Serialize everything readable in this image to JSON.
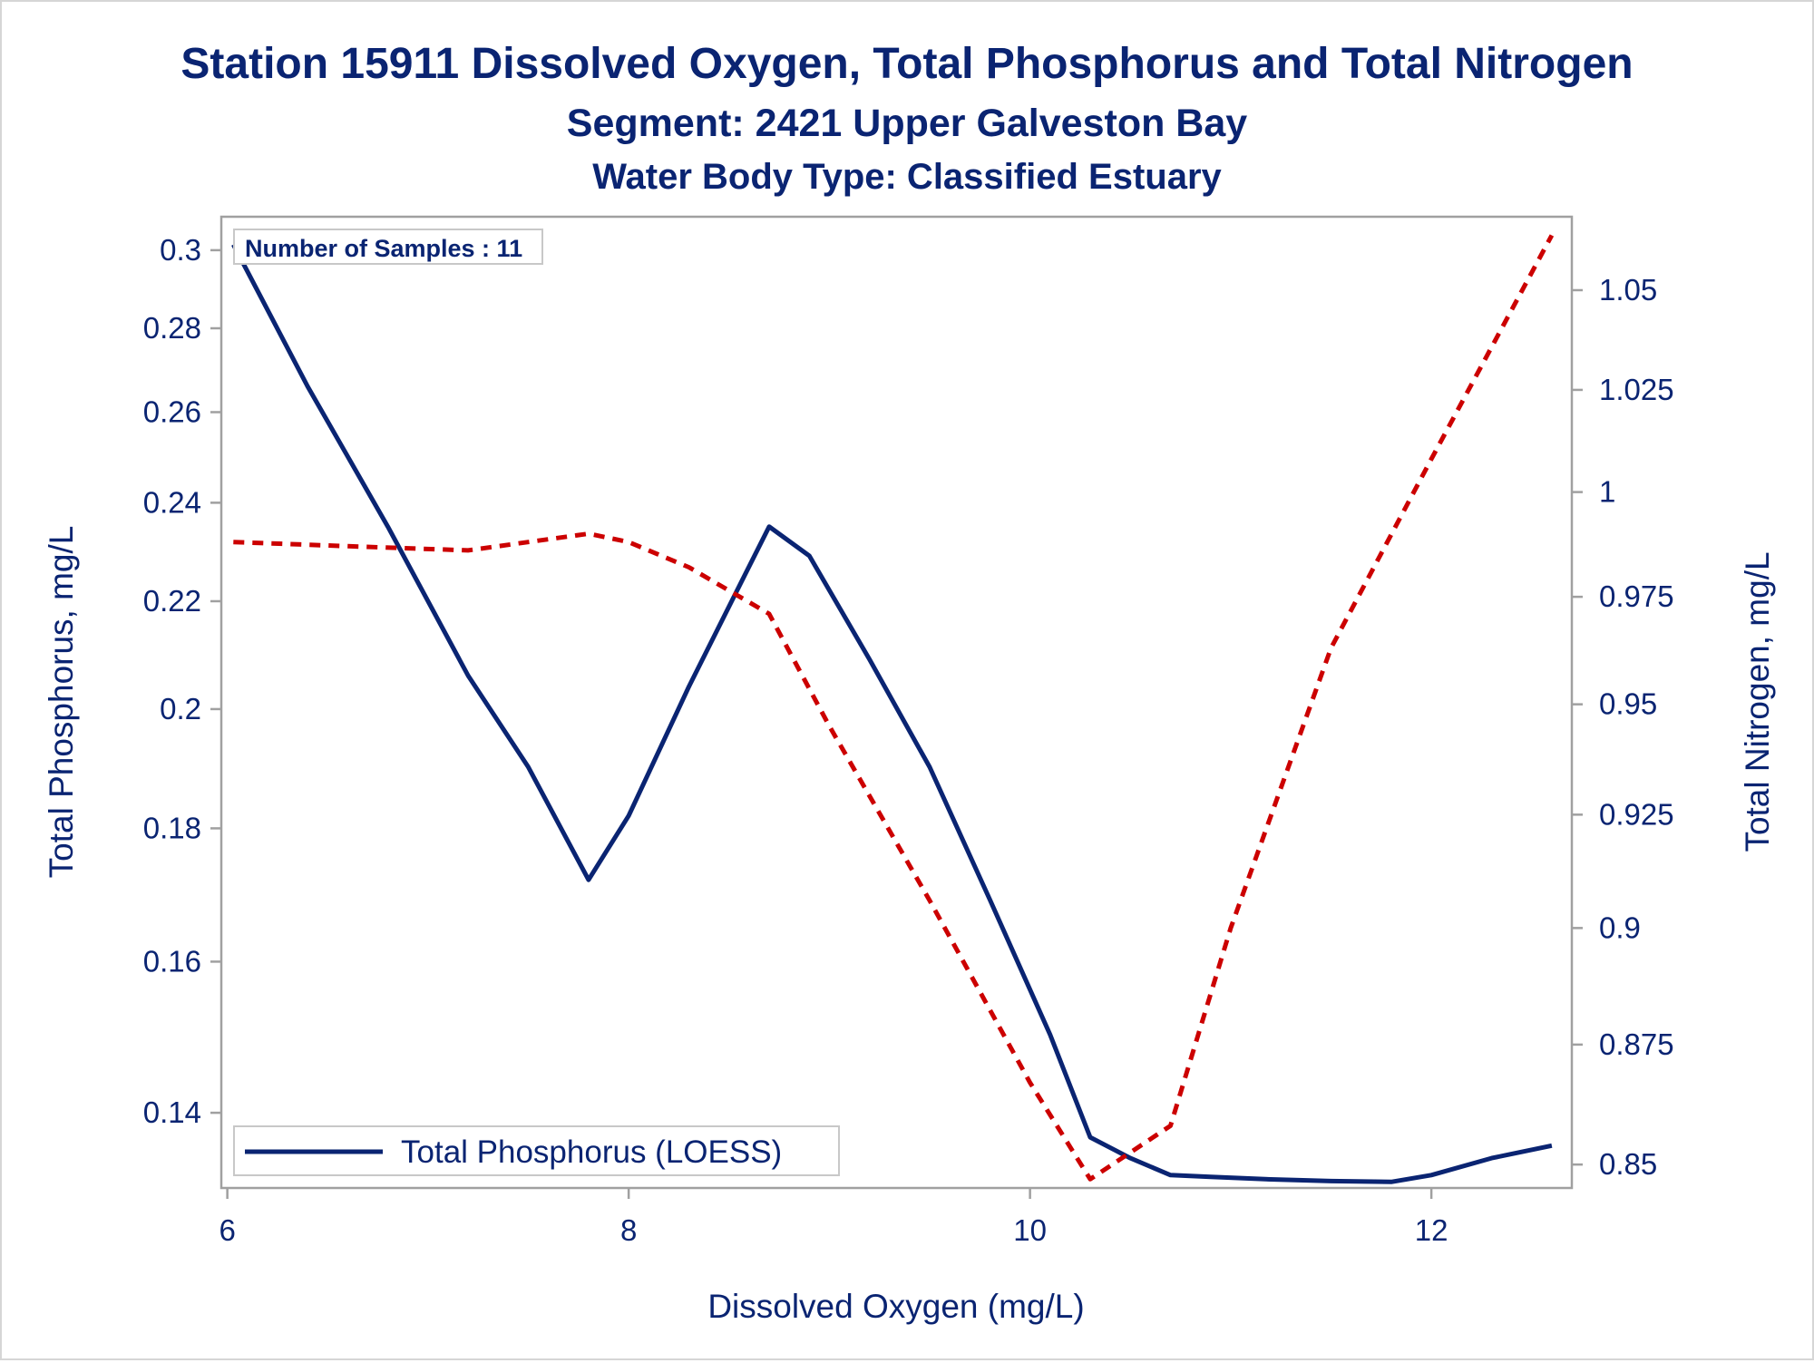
{
  "chart_data": {
    "type": "line",
    "title": "Station 15911  Dissolved Oxygen, Total Phosphorus and Total Nitrogen",
    "subtitle": "Segment: 2421  Upper Galveston Bay",
    "subtitle2": "Water Body Type: Classified Estuary",
    "xlabel": "Dissolved Oxygen (mg/L)",
    "ylabel": "Total Phosphorus, mg/L",
    "y2label": "Total Nitrogen, mg/L",
    "xlim": [
      5.97,
      12.7
    ],
    "ylim": [
      0.131,
      0.309
    ],
    "y2lim": [
      0.8452,
      1.0688
    ],
    "y_scale": "log",
    "y2_scale": "log",
    "xticks": [
      6,
      8,
      10,
      12
    ],
    "yticks": [
      0.14,
      0.16,
      0.18,
      0.2,
      0.22,
      0.24,
      0.26,
      0.28,
      0.3
    ],
    "y2ticks": [
      0.85,
      0.875,
      0.9,
      0.925,
      0.95,
      0.975,
      1,
      1.025,
      1.05
    ],
    "xtick_labels": [
      "6",
      "8",
      "10",
      "12"
    ],
    "ytick_labels": [
      "0.14",
      "0.16",
      "0.18",
      "0.2",
      "0.22",
      "0.24",
      "0.26",
      "0.28",
      "0.3"
    ],
    "y2tick_labels": [
      "0.85",
      "0.875",
      "0.9",
      "0.925",
      "0.95",
      "0.975",
      "1",
      "1.025",
      "1.05"
    ],
    "annotation": "Number of Samples : 11",
    "legend": {
      "position": "bottom-left",
      "entries": [
        "Total Phosphorus (LOESS)"
      ]
    },
    "grid": false,
    "series": [
      {
        "name": "Total Phosphorus (LOESS)",
        "axis": "left",
        "style": "solid",
        "color": "#0a2472",
        "x": [
          6.03,
          6.4,
          6.8,
          7.2,
          7.5,
          7.8,
          8.0,
          8.3,
          8.5,
          8.7,
          8.9,
          9.2,
          9.5,
          9.8,
          10.1,
          10.3,
          10.5,
          10.7,
          10.9,
          11.2,
          11.5,
          11.8,
          12.0,
          12.3,
          12.6
        ],
        "y": [
          0.3015,
          0.266,
          0.235,
          0.206,
          0.19,
          0.172,
          0.182,
          0.204,
          0.219,
          0.235,
          0.229,
          0.209,
          0.19,
          0.169,
          0.15,
          0.137,
          0.1345,
          0.1325,
          0.1323,
          0.132,
          0.1318,
          0.1317,
          0.1325,
          0.1345,
          0.136
        ]
      },
      {
        "axis": "right",
        "style": "dashed",
        "color": "#cc0000",
        "x": [
          6.03,
          6.6,
          7.2,
          7.8,
          8.0,
          8.3,
          8.7,
          9.0,
          9.5,
          10.0,
          10.3,
          10.7,
          11.0,
          11.5,
          12.0,
          12.6
        ],
        "y": [
          0.988,
          0.987,
          0.986,
          0.99,
          0.988,
          0.982,
          0.971,
          0.945,
          0.906,
          0.867,
          0.847,
          0.858,
          0.9,
          0.963,
          1.008,
          1.064
        ]
      }
    ]
  },
  "colors": {
    "text": "#0a2472",
    "tp_line": "#0a2472",
    "tn_line": "#cc0000",
    "axis": "#a0a0a0",
    "legend_border": "#c8c8c8"
  }
}
